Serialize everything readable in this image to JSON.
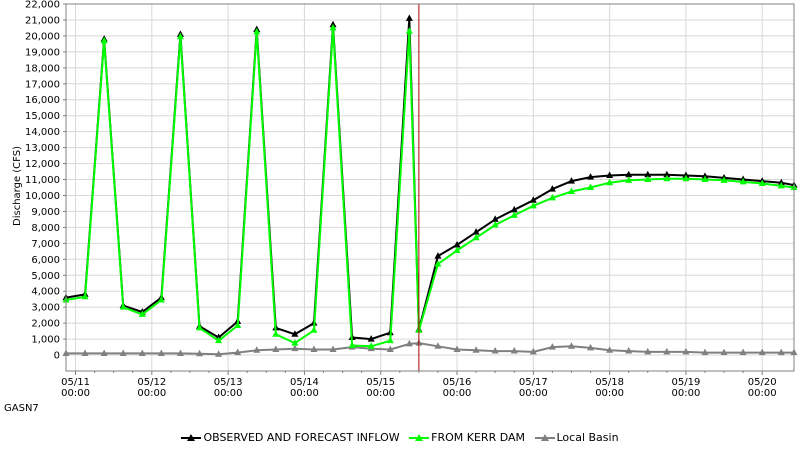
{
  "chart_data": {
    "type": "line",
    "ylabel": "Discharge (CFS)",
    "ylim": [
      -1000,
      22000
    ],
    "yticks": [
      0,
      1000,
      2000,
      3000,
      4000,
      5000,
      6000,
      7000,
      8000,
      9000,
      10000,
      11000,
      12000,
      13000,
      14000,
      15000,
      16000,
      17000,
      18000,
      19000,
      20000,
      21000,
      22000
    ],
    "ytick_labels": [
      "0",
      "1,000",
      "2,000",
      "3,000",
      "4,000",
      "5,000",
      "6,000",
      "7,000",
      "8,000",
      "9,000",
      "10,000",
      "11,000",
      "12,000",
      "13,000",
      "14,000",
      "15,000",
      "16,000",
      "17,000",
      "18,000",
      "19,000",
      "20,000",
      "21,000",
      "22,000"
    ],
    "x_unit": "hours since 05/10 00:00",
    "xlim": [
      21,
      250
    ],
    "xticks": [
      24,
      48,
      72,
      96,
      120,
      144,
      168,
      192,
      216,
      240
    ],
    "xtick_labels": [
      [
        "05/11",
        "00:00"
      ],
      [
        "05/12",
        "00:00"
      ],
      [
        "05/13",
        "00:00"
      ],
      [
        "05/14",
        "00:00"
      ],
      [
        "05/15",
        "00:00"
      ],
      [
        "05/16",
        "00:00"
      ],
      [
        "05/17",
        "00:00"
      ],
      [
        "05/18",
        "00:00"
      ],
      [
        "05/19",
        "00:00"
      ],
      [
        "05/20",
        "00:00"
      ]
    ],
    "forecast_start_x": 132,
    "x": [
      21,
      27,
      33,
      39,
      45,
      51,
      57,
      63,
      69,
      75,
      81,
      87,
      93,
      99,
      105,
      111,
      117,
      123,
      129,
      132,
      138,
      144,
      150,
      156,
      162,
      168,
      174,
      180,
      186,
      192,
      198,
      204,
      210,
      216,
      222,
      228,
      234,
      240,
      246,
      250
    ],
    "series": [
      {
        "name": "OBSERVED AND FORECAST INFLOW",
        "color": "#000000",
        "marker": "triangle",
        "values": [
          3600,
          3800,
          19800,
          3100,
          2700,
          3600,
          20100,
          1800,
          1100,
          2100,
          20400,
          1700,
          1300,
          2000,
          20700,
          1100,
          1000,
          1400,
          21100,
          1600,
          6200,
          6900,
          7700,
          8500,
          9100,
          9700,
          10400,
          10900,
          11150,
          11250,
          11300,
          11300,
          11300,
          11250,
          11200,
          11100,
          11000,
          10900,
          10800,
          10650
        ]
      },
      {
        "name": "FROM KERR DAM",
        "color": "#00ff00",
        "marker": "triangle",
        "values": [
          3450,
          3650,
          19700,
          3000,
          2550,
          3450,
          19950,
          1700,
          900,
          1850,
          20250,
          1300,
          750,
          1550,
          20500,
          600,
          550,
          900,
          20300,
          1550,
          5700,
          6550,
          7350,
          8150,
          8750,
          9350,
          9850,
          10250,
          10500,
          10800,
          10950,
          11000,
          11050,
          11050,
          11000,
          10950,
          10850,
          10750,
          10600,
          10500
        ]
      },
      {
        "name": "Local Basin",
        "color": "#808080",
        "marker": "triangle",
        "values": [
          100,
          100,
          100,
          100,
          100,
          100,
          100,
          80,
          50,
          150,
          300,
          350,
          400,
          350,
          350,
          500,
          400,
          350,
          700,
          750,
          550,
          350,
          300,
          250,
          250,
          200,
          500,
          550,
          450,
          300,
          250,
          200,
          200,
          200,
          150,
          150,
          150,
          150,
          150,
          150
        ]
      }
    ]
  },
  "station": "GASN7"
}
